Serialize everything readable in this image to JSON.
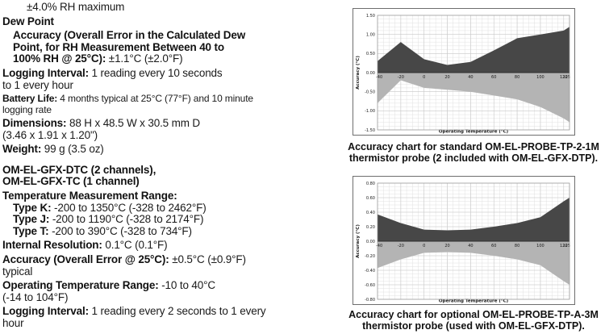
{
  "colors": {
    "text": "#1a1a1a",
    "dark_area": "#474747",
    "light_area": "#b4b4b4",
    "grid_minor": "#e0e0e0",
    "grid_major": "#c9c9c9",
    "plot_border": "#999999",
    "zero_axis": "#2f2f2f",
    "box_border": "#6e6e6e"
  },
  "spec_lines": [
    {
      "indent": 2,
      "segments": [
        {
          "text": "±4.0% RH maximum",
          "bold": false
        }
      ]
    },
    {
      "gap": 1,
      "segments": [
        {
          "text": "Dew Point",
          "bold": true
        }
      ]
    },
    {
      "indent": 1,
      "gap": 1,
      "segments": [
        {
          "text": "Accuracy (Overall Error in the Calculated Dew",
          "bold": true
        }
      ]
    },
    {
      "indent": 1,
      "segments": [
        {
          "text": "Point, for RH Measurement Between 40 to",
          "bold": true
        }
      ]
    },
    {
      "indent": 1,
      "segments": [
        {
          "text": "100% RH @ 25°C):",
          "bold": true
        },
        {
          "text": " ±1.1°C (±2.0°F)",
          "bold": false
        }
      ]
    },
    {
      "gap": 1,
      "segments": [
        {
          "text": "Logging Interval:",
          "bold": true
        },
        {
          "text": " 1 reading every 10 seconds",
          "bold": false
        }
      ]
    },
    {
      "segments": [
        {
          "text": "to 1 every hour",
          "bold": false
        }
      ]
    },
    {
      "gap": 1,
      "size": "s",
      "segments": [
        {
          "text": "Battery Life:",
          "bold": true
        },
        {
          "text": " 4 months typical at 25°C (77°F) and 10 minute",
          "bold": false
        }
      ]
    },
    {
      "size": "s",
      "segments": [
        {
          "text": "logging rate",
          "bold": false
        }
      ]
    },
    {
      "gap": 1,
      "segments": [
        {
          "text": "Dimensions:",
          "bold": true
        },
        {
          "text": " 88 H x 48.5 W x 30.5 mm D",
          "bold": false
        }
      ]
    },
    {
      "segments": [
        {
          "text": "(3.46 x 1.91 x 1.20\")",
          "bold": false
        }
      ]
    },
    {
      "gap": 1,
      "segments": [
        {
          "text": "Weight:",
          "bold": true
        },
        {
          "text": " 99 g (3.5 oz)",
          "bold": false
        }
      ]
    },
    {
      "gap": 2,
      "segments": [
        {
          "text": "OM-EL-GFX-DTC (2 channels),",
          "bold": true
        }
      ]
    },
    {
      "segments": [
        {
          "text": "OM-EL-GFX-TC (1 channel)",
          "bold": true
        }
      ]
    },
    {
      "gap": 1,
      "segments": [
        {
          "text": "Temperature Measurement Range:",
          "bold": true
        }
      ]
    },
    {
      "indent": 1,
      "segments": [
        {
          "text": "Type K:",
          "bold": true
        },
        {
          "text": " -200 to 1350°C (-328 to 2462°F)",
          "bold": false
        }
      ]
    },
    {
      "indent": 1,
      "segments": [
        {
          "text": "Type J:",
          "bold": true
        },
        {
          "text": " -200 to 1190°C (-328 to 2174°F)",
          "bold": false
        }
      ]
    },
    {
      "indent": 1,
      "segments": [
        {
          "text": "Type T:",
          "bold": true
        },
        {
          "text": " -200 to 390°C (-328 to 734°F)",
          "bold": false
        }
      ]
    },
    {
      "gap": 1,
      "segments": [
        {
          "text": "Internal Resolution:",
          "bold": true
        },
        {
          "text": " 0.1°C (0.1°F)",
          "bold": false
        }
      ]
    },
    {
      "gap": 1,
      "segments": [
        {
          "text": "Accuracy (Overall Error @ 25°C):",
          "bold": true
        },
        {
          "text": " ±0.5°C (±0.9°F)",
          "bold": false
        }
      ]
    },
    {
      "segments": [
        {
          "text": "typical",
          "bold": false
        }
      ]
    },
    {
      "gap": 1,
      "segments": [
        {
          "text": "Operating Temperature Range:",
          "bold": true
        },
        {
          "text": " -10 to 40°C",
          "bold": false
        }
      ]
    },
    {
      "segments": [
        {
          "text": "(-14 to 104°F)",
          "bold": false
        }
      ]
    },
    {
      "gap": 1,
      "segments": [
        {
          "text": "Logging Interval:",
          "bold": true
        },
        {
          "text": " 1 reading every 2 seconds to 1 every",
          "bold": false
        }
      ]
    },
    {
      "segments": [
        {
          "text": "hour",
          "bold": false
        }
      ]
    }
  ],
  "figures": [
    {
      "caption_line1": "Accuracy chart for standard OM-EL-PROBE-TP-2-1M",
      "caption_line2": "thermistor probe (2 included with OM-EL-GFX-DTP)."
    },
    {
      "caption_line1": "Accuracy chart for optional OM-EL-PROBE-TP-A-3M",
      "caption_line2": "thermistor probe (used with OM-EL-GFX-DTP)."
    }
  ],
  "chart_data": [
    {
      "type": "area",
      "title": "",
      "xlabel": "Operating Temperature (°C)",
      "ylabel": "Accuracy (°C)",
      "x": [
        -40,
        -20,
        0,
        20,
        40,
        60,
        80,
        100,
        120,
        125
      ],
      "series": [
        {
          "name": "upper accuracy bound",
          "color": "#474747",
          "values": [
            0.3,
            0.8,
            0.35,
            0.2,
            0.28,
            0.58,
            0.9,
            1.0,
            1.1,
            1.2
          ]
        },
        {
          "name": "lower accuracy bound",
          "color": "#b4b4b4",
          "values": [
            -0.8,
            -0.2,
            -0.4,
            -0.45,
            -0.5,
            -0.6,
            -0.7,
            -0.9,
            -1.2,
            -1.3
          ]
        }
      ],
      "xlim": [
        -40,
        125
      ],
      "ylim": [
        -1.5,
        1.5
      ],
      "ytick_step": 0.5,
      "y_minor": 0.1,
      "x_minor": 5,
      "xticks": [
        -40,
        -20,
        0,
        20,
        40,
        60,
        80,
        100,
        120,
        125
      ],
      "ytick_format_decimals": 2,
      "grid": true,
      "legend": false
    },
    {
      "type": "area",
      "title": "",
      "xlabel": "Operating Temperature (°C)",
      "ylabel": "Accuracy (°C)",
      "x": [
        -40,
        -20,
        0,
        20,
        40,
        60,
        80,
        100,
        120,
        125
      ],
      "series": [
        {
          "name": "upper accuracy bound",
          "color": "#474747",
          "values": [
            0.37,
            0.25,
            0.16,
            0.15,
            0.16,
            0.2,
            0.25,
            0.33,
            0.55,
            0.6
          ]
        },
        {
          "name": "lower accuracy bound",
          "color": "#b4b4b4",
          "values": [
            -0.37,
            -0.25,
            -0.16,
            -0.15,
            -0.16,
            -0.2,
            -0.25,
            -0.33,
            -0.55,
            -0.6
          ]
        }
      ],
      "xlim": [
        -40,
        125
      ],
      "ylim": [
        -0.8,
        0.8
      ],
      "ytick_step": 0.2,
      "y_minor": 0.05,
      "x_minor": 5,
      "xticks": [
        -40,
        -20,
        0,
        20,
        40,
        60,
        80,
        100,
        120,
        125
      ],
      "ytick_format_decimals": 2,
      "grid": true,
      "legend": false
    }
  ]
}
